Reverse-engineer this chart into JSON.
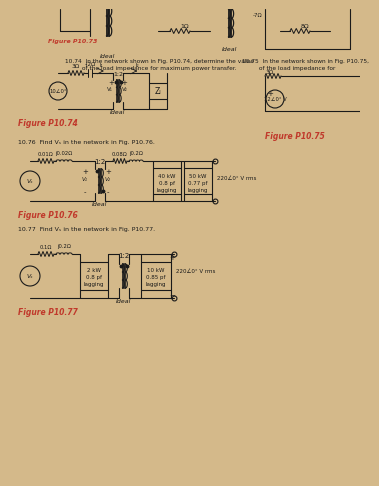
{
  "page_bg": "#d4b98a",
  "line_color": "#1a1a1a",
  "text_color": "#1a1a1a",
  "fig_title_color": "#c0392b",
  "fig73_label": "Figure P10.73",
  "fig74_label": "Figure P10.74",
  "fig75_label": "Figure P10.75",
  "fig76_label": "Figure P10.76",
  "fig77_label": "Figure P10.77",
  "p74_text_line1": "10.74  In the network shown in Fig. P10.74, determine the value",
  "p74_text_line2": "         of the load impedance for maximum power transfer.",
  "p74_r1": "3Ω",
  "p74_z1": "-j2Ω",
  "p74_ratio": "1:2",
  "p74_i1": "I₁",
  "p74_i2": "I₂",
  "p74_v1": "V₁",
  "p74_v2": "V₂",
  "p74_vs": "10∠0°",
  "p74_zl": "Zₗ",
  "p74_ideal": "Ideal",
  "p75_text_line1": "10.75  In the network shown in Fig. P10.75,",
  "p75_text_line2": "         of the load impedance for",
  "p75_r1": "3Ω",
  "p75_vs": "12∠0° V",
  "p76_text": "10.76  Find Vₛ in the network in Fig. P10.76.",
  "p76_r1": "0.01Ω",
  "p76_jx1": "j0.02Ω",
  "p76_r2": "0.08Ω",
  "p76_jx2": "j0.2Ω",
  "p76_ratio": "1:2",
  "p76_v1": "V₁",
  "p76_v2": "V₂",
  "p76_vs": "Vₛ",
  "p76_load1_l1": "40 kW",
  "p76_load1_l2": "0.8 pf",
  "p76_load1_l3": "lagging",
  "p76_load2_l1": "50 kW",
  "p76_load2_l2": "0.77 pf",
  "p76_load2_l3": "lagging",
  "p76_vsrc": "220∠0° V rms",
  "p76_ideal": "Ideal",
  "p77_text": "10.77  Find Vₛ in the network in Fig. P10.77.",
  "p77_r1": "0.1Ω",
  "p77_jx1": "j0.2Ω",
  "p77_ratio": "1:2",
  "p77_vs": "Vₛ",
  "p77_load1_l1": "2 kW",
  "p77_load1_l2": "0.8 pf",
  "p77_load1_l3": "lagging",
  "p77_load2_l1": "10 kW",
  "p77_load2_l2": "0.85 pf",
  "p77_load2_l3": "lagging",
  "p77_vsrc": "220∠0° V rms",
  "p77_ideal": "Ideal"
}
